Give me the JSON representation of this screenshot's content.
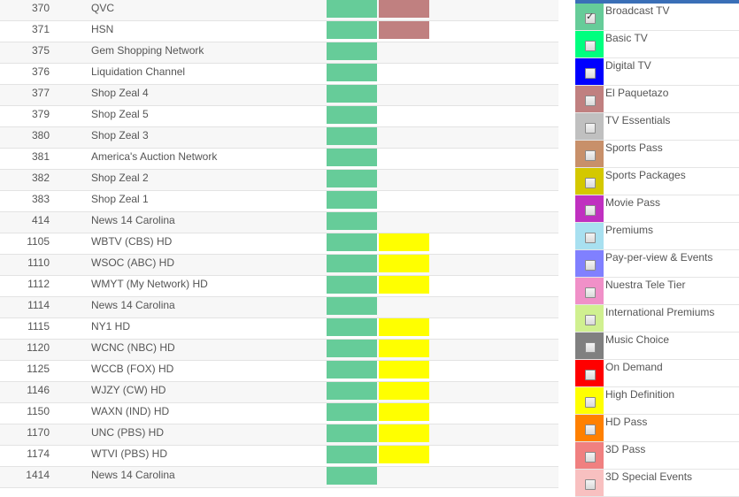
{
  "colors": {
    "green": "#66cc99",
    "rose": "#c08080",
    "yellow": "#ffff00"
  },
  "channels": [
    {
      "number": "370",
      "name": "QVC",
      "c1": "#66cc99",
      "c2": "#c08080"
    },
    {
      "number": "371",
      "name": "HSN",
      "c1": "#66cc99",
      "c2": "#c08080"
    },
    {
      "number": "375",
      "name": "Gem Shopping Network",
      "c1": "#66cc99",
      "c2": ""
    },
    {
      "number": "376",
      "name": "Liquidation Channel",
      "c1": "#66cc99",
      "c2": ""
    },
    {
      "number": "377",
      "name": "Shop Zeal 4",
      "c1": "#66cc99",
      "c2": ""
    },
    {
      "number": "379",
      "name": "Shop Zeal 5",
      "c1": "#66cc99",
      "c2": ""
    },
    {
      "number": "380",
      "name": "Shop Zeal 3",
      "c1": "#66cc99",
      "c2": ""
    },
    {
      "number": "381",
      "name": "America's Auction Network",
      "c1": "#66cc99",
      "c2": ""
    },
    {
      "number": "382",
      "name": "Shop Zeal 2",
      "c1": "#66cc99",
      "c2": ""
    },
    {
      "number": "383",
      "name": "Shop Zeal 1",
      "c1": "#66cc99",
      "c2": ""
    },
    {
      "number": "414",
      "name": "News 14 Carolina",
      "c1": "#66cc99",
      "c2": ""
    },
    {
      "number": "1105",
      "name": "WBTV (CBS) HD",
      "c1": "#66cc99",
      "c2": "#ffff00"
    },
    {
      "number": "1110",
      "name": "WSOC (ABC) HD",
      "c1": "#66cc99",
      "c2": "#ffff00"
    },
    {
      "number": "1112",
      "name": "WMYT (My Network) HD",
      "c1": "#66cc99",
      "c2": "#ffff00"
    },
    {
      "number": "1114",
      "name": "News 14 Carolina",
      "c1": "#66cc99",
      "c2": ""
    },
    {
      "number": "1115",
      "name": "NY1 HD",
      "c1": "#66cc99",
      "c2": "#ffff00"
    },
    {
      "number": "1120",
      "name": "WCNC (NBC) HD",
      "c1": "#66cc99",
      "c2": "#ffff00"
    },
    {
      "number": "1125",
      "name": "WCCB (FOX) HD",
      "c1": "#66cc99",
      "c2": "#ffff00"
    },
    {
      "number": "1146",
      "name": "WJZY (CW) HD",
      "c1": "#66cc99",
      "c2": "#ffff00"
    },
    {
      "number": "1150",
      "name": "WAXN (IND) HD",
      "c1": "#66cc99",
      "c2": "#ffff00"
    },
    {
      "number": "1170",
      "name": "UNC (PBS) HD",
      "c1": "#66cc99",
      "c2": "#ffff00"
    },
    {
      "number": "1174",
      "name": "WTVI (PBS) HD",
      "c1": "#66cc99",
      "c2": "#ffff00"
    },
    {
      "number": "1414",
      "name": "News 14 Carolina",
      "c1": "#66cc99",
      "c2": ""
    }
  ],
  "packages": [
    {
      "label": "Broadcast TV",
      "color": "#66cc99",
      "checked": true
    },
    {
      "label": "Basic TV",
      "color": "#00ff7f",
      "checked": false
    },
    {
      "label": "Digital TV",
      "color": "#0000ff",
      "checked": false
    },
    {
      "label": "El Paquetazo",
      "color": "#c08080",
      "checked": false
    },
    {
      "label": "TV Essentials",
      "color": "#c0c0c0",
      "checked": false
    },
    {
      "label": "Sports Pass",
      "color": "#c8906a",
      "checked": false
    },
    {
      "label": "Sports Packages",
      "color": "#d4c800",
      "checked": false
    },
    {
      "label": "Movie Pass",
      "color": "#c030c0",
      "checked": false
    },
    {
      "label": "Premiums",
      "color": "#a8e0f0",
      "checked": false
    },
    {
      "label": "Pay-per-view & Events",
      "color": "#8080ff",
      "checked": false
    },
    {
      "label": "Nuestra Tele Tier",
      "color": "#f090c8",
      "checked": false
    },
    {
      "label": "International Premiums",
      "color": "#d0f090",
      "checked": false
    },
    {
      "label": "Music Choice",
      "color": "#808080",
      "checked": false
    },
    {
      "label": "On Demand",
      "color": "#ff0000",
      "checked": false
    },
    {
      "label": "High Definition",
      "color": "#ffff00",
      "checked": false
    },
    {
      "label": "HD Pass",
      "color": "#ff8000",
      "checked": false
    },
    {
      "label": "3D Pass",
      "color": "#f08080",
      "checked": false
    },
    {
      "label": "3D Special Events",
      "color": "#f8c0c0",
      "checked": false
    }
  ]
}
